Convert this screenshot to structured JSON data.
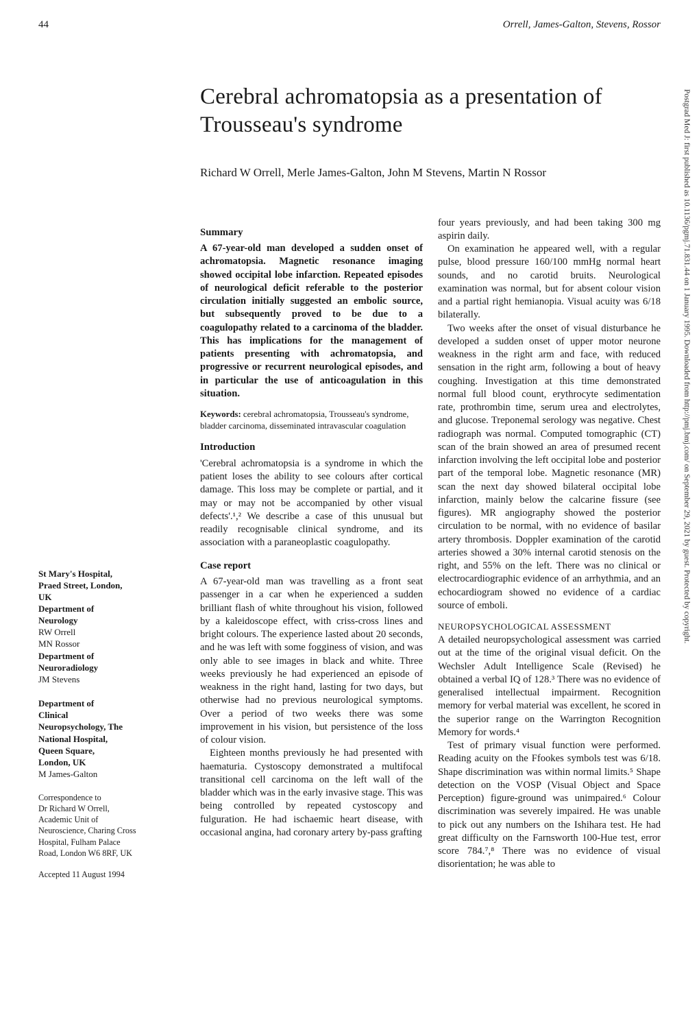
{
  "page": {
    "number": "44",
    "running_head": "Orrell, James-Galton, Stevens, Rossor"
  },
  "title": "Cerebral achromatopsia as a presentation of Trousseau's syndrome",
  "authors": "Richard W Orrell, Merle James-Galton, John M Stevens, Martin N Rossor",
  "abstract": {
    "head": "Summary",
    "body": "A 67-year-old man developed a sudden onset of achromatopsia. Magnetic resonance imaging showed occipital lobe infarction. Repeated episodes of neurological deficit referable to the posterior circulation initially suggested an embolic source, but subsequently proved to be due to a coagulopathy related to a carcinoma of the bladder. This has implications for the management of patients presenting with achromatopsia, and progressive or recurrent neurological episodes, and in particular the use of anticoagulation in this situation."
  },
  "keywords": {
    "label": "Keywords:",
    "text": "cerebral achromatopsia, Trousseau's syndrome, bladder carcinoma, disseminated intravascular coagulation"
  },
  "intro": {
    "head": "Introduction",
    "body": "'Cerebral achromatopsia is a syndrome in which the patient loses the ability to see colours after cortical damage. This loss may be complete or partial, and it may or may not be accompanied by other visual defects'.¹,² We describe a case of this unusual but readily recognisable clinical syndrome, and its association with a paraneoplastic coagulopathy."
  },
  "case": {
    "head": "Case report",
    "p1": "A 67-year-old man was travelling as a front seat passenger in a car when he experienced a sudden brilliant flash of white throughout his vision, followed by a kaleidoscope effect, with criss-cross lines and bright colours. The experience lasted about 20 seconds, and he was left with some fogginess of vision, and was only able to see images in black and white. Three weeks previously he had experienced an episode of weakness in the right hand, lasting for two days, but otherwise had no previous neurological symptoms. Over a period of two weeks there was some improvement in his vision, but persistence of the loss of colour vision.",
    "p2": "Eighteen months previously he had presented with haematuria. Cystoscopy demonstrated a multifocal transitional cell carcinoma on the left wall of the bladder which was in the early invasive stage. This was being controlled by repeated cystoscopy and fulguration. He had ischaemic heart disease, with occasional angina, had coronary artery by-pass grafting",
    "p3": "four years previously, and had been taking 300 mg aspirin daily.",
    "p4": "On examination he appeared well, with a regular pulse, blood pressure 160/100 mmHg normal heart sounds, and no carotid bruits. Neurological examination was normal, but for absent colour vision and a partial right hemianopia. Visual acuity was 6/18 bilaterally.",
    "p5": "Two weeks after the onset of visual disturbance he developed a sudden onset of upper motor neurone weakness in the right arm and face, with reduced sensation in the right arm, following a bout of heavy coughing. Investigation at this time demonstrated normal full blood count, erythrocyte sedimentation rate, prothrombin time, serum urea and electrolytes, and glucose. Treponemal serology was negative. Chest radiograph was normal. Computed tomographic (CT) scan of the brain showed an area of presumed recent infarction involving the left occipital lobe and posterior part of the temporal lobe. Magnetic resonance (MR) scan the next day showed bilateral occipital lobe infarction, mainly below the calcarine fissure (see figures). MR angiography showed the posterior circulation to be normal, with no evidence of basilar artery thrombosis. Doppler examination of the carotid arteries showed a 30% internal carotid stenosis on the right, and 55% on the left. There was no clinical or electrocardiographic evidence of an arrhythmia, and an echocardiogram showed no evidence of a cardiac source of emboli."
  },
  "neuro": {
    "head": "NEUROPSYCHOLOGICAL ASSESSMENT",
    "p1": "A detailed neuropsychological assessment was carried out at the time of the original visual deficit. On the Wechsler Adult Intelligence Scale (Revised) he obtained a verbal IQ of 128.³ There was no evidence of generalised intellectual impairment. Recognition memory for verbal material was excellent, he scored in the superior range on the Warrington Recognition Memory for words.⁴",
    "p2": "Test of primary visual function were performed. Reading acuity on the Ffookes symbols test was 6/18. Shape discrimination was within normal limits.⁵ Shape detection on the VOSP (Visual Object and Space Perception) figure-ground was unimpaired.⁶ Colour discrimination was severely impaired. He was unable to pick out any numbers on the Ishihara test. He had great difficulty on the Farnsworth 100-Hue test, error score 784.⁷,⁸ There was no evidence of visual disorientation; he was able to"
  },
  "affiliations": {
    "a1_bold1": "St Mary's Hospital,",
    "a1_bold2": "Praed Street, London,",
    "a1_bold3": "UK",
    "a1_bold4": "Department of",
    "a1_bold5": "Neurology",
    "a1_line1": "RW Orrell",
    "a1_line2": "MN Rossor",
    "a1_bold6": "Department of",
    "a1_bold7": "Neuroradiology",
    "a1_line3": "JM Stevens",
    "a2_bold1": "Department of",
    "a2_bold2": "Clinical",
    "a2_bold3": "Neuropsychology, The",
    "a2_bold4": "National Hospital,",
    "a2_bold5": "Queen Square,",
    "a2_bold6": "London, UK",
    "a2_line1": "M James-Galton"
  },
  "correspondence": {
    "l1": "Correspondence to",
    "l2": "Dr Richard W Orrell,",
    "l3": "Academic Unit of",
    "l4": "Neuroscience, Charing Cross",
    "l5": "Hospital, Fulham Palace",
    "l6": "Road, London W6 8RF, UK"
  },
  "accepted": "Accepted 11 August 1994",
  "side_strip": "Postgrad Med J: first published as 10.1136/pgmj.71.831.44 on 1 January 1995. Downloaded from http://pmj.bmj.com/ on September 29, 2021 by guest. Protected by copyright."
}
